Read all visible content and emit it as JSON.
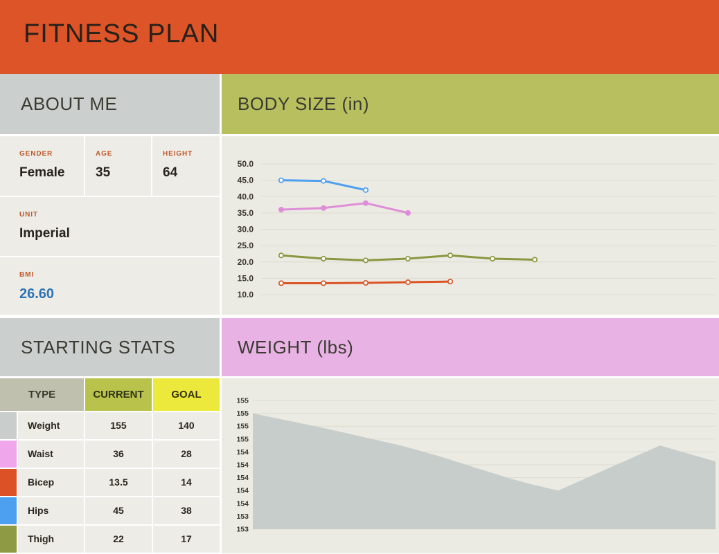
{
  "header": {
    "title": "FITNESS PLAN"
  },
  "about": {
    "title": "ABOUT ME",
    "fields": [
      {
        "label": "GENDER",
        "value": "Female"
      },
      {
        "label": "AGE",
        "value": "35"
      },
      {
        "label": "HEIGHT",
        "value": "64"
      },
      {
        "label": "UNIT",
        "value": "Imperial"
      },
      {
        "label": "BMI",
        "value": "26.60"
      }
    ]
  },
  "starting_stats": {
    "title": "STARTING STATS",
    "columns": [
      "TYPE",
      "CURRENT",
      "GOAL"
    ],
    "rows": [
      {
        "type": "Weight",
        "current": "155",
        "goal": "140",
        "swatch": "#C9CECC"
      },
      {
        "type": "Waist",
        "current": "36",
        "goal": "28",
        "swatch": "#EFA6EB"
      },
      {
        "type": "Bicep",
        "current": "13.5",
        "goal": "14",
        "swatch": "#DC5226"
      },
      {
        "type": "Hips",
        "current": "45",
        "goal": "38",
        "swatch": "#4D9FF0"
      },
      {
        "type": "Thigh",
        "current": "22",
        "goal": "17",
        "swatch": "#8E9A44"
      }
    ]
  },
  "chart_data": [
    {
      "type": "line",
      "title": "BODY SIZE (in)",
      "xlabel": "",
      "ylabel": "",
      "ylim": [
        10,
        50
      ],
      "ytick_labels": [
        "50.0",
        "45.0",
        "40.0",
        "35.0",
        "30.0",
        "25.0",
        "20.0",
        "15.0",
        "10.0"
      ],
      "grid": true,
      "legend_position": "none (series colors keyed to Starting Stats swatches)",
      "series": [
        {
          "name": "Hips",
          "color": "#4D9FF0",
          "marker": "open",
          "values": [
            45,
            44.8,
            42
          ]
        },
        {
          "name": "Waist",
          "color": "#DE8ED8",
          "marker": "filled",
          "values": [
            36,
            36.5,
            38,
            35
          ]
        },
        {
          "name": "Thigh",
          "color": "#8A9740",
          "marker": "open",
          "values": [
            22,
            21,
            20.5,
            21,
            22,
            21,
            20.7
          ]
        },
        {
          "name": "Bicep",
          "color": "#DC5426",
          "marker": "open",
          "values": [
            13.5,
            13.5,
            13.6,
            13.8,
            14
          ]
        }
      ]
    },
    {
      "type": "area",
      "title": "WEIGHT (lbs)",
      "xlabel": "",
      "ylabel": "",
      "ylim": [
        153.2,
        155.2
      ],
      "ytick_labels": [
        "155",
        "155",
        "155",
        "155",
        "154",
        "154",
        "154",
        "154",
        "154",
        "153",
        "153"
      ],
      "grid": true,
      "fill_color": "#C7CDCB",
      "points": [
        [
          0,
          155.0
        ],
        [
          0.08,
          154.88
        ],
        [
          0.16,
          154.76
        ],
        [
          0.24,
          154.63
        ],
        [
          0.32,
          154.5
        ],
        [
          0.4,
          154.34
        ],
        [
          0.47,
          154.18
        ],
        [
          0.55,
          154.0
        ],
        [
          0.6,
          153.9
        ],
        [
          0.66,
          153.8
        ],
        [
          0.88,
          154.5
        ],
        [
          1,
          154.25
        ]
      ]
    }
  ],
  "colors": {
    "header_orange": "#DC5427",
    "band_gray": "#CBD0CE",
    "band_olive": "#B8BF5E",
    "band_pink": "#E8B3E4",
    "panel_bg": "#EDECE6",
    "chart_bg": "#EBEBE3",
    "gridline": "#DBDBD0",
    "label_orange": "#C05A2C",
    "bmi_blue": "#2E74B5",
    "col_type_bg": "#BFC0AE",
    "col_current_bg": "#B9C24B",
    "col_goal_bg": "#EDE93C"
  }
}
